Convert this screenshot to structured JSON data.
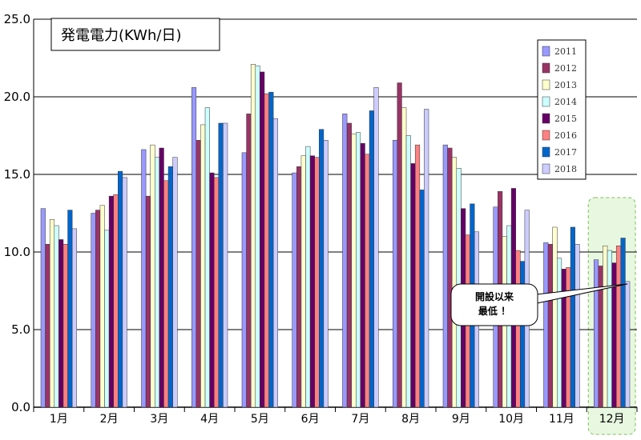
{
  "chart_data": {
    "type": "bar",
    "title": "発電電力(KWh/日)",
    "categories": [
      "1月",
      "2月",
      "3月",
      "4月",
      "5月",
      "6月",
      "7月",
      "8月",
      "9月",
      "10月",
      "11月",
      "12月"
    ],
    "ylim": [
      0,
      25
    ],
    "yticks": [
      "0.0",
      "5.0",
      "10.0",
      "15.0",
      "20.0",
      "25.0"
    ],
    "grid": true,
    "legend_position": "top-right",
    "series": [
      {
        "name": "2011",
        "color": "#9999ff",
        "values": [
          12.8,
          12.5,
          16.6,
          20.6,
          16.4,
          15.1,
          18.9,
          17.2,
          16.9,
          12.9,
          10.6,
          9.5
        ]
      },
      {
        "name": "2012",
        "color": "#993366",
        "values": [
          10.5,
          12.7,
          13.6,
          17.2,
          18.9,
          15.5,
          18.3,
          20.9,
          16.7,
          13.9,
          10.5,
          9.1
        ]
      },
      {
        "name": "2013",
        "color": "#ffffcc",
        "values": [
          12.1,
          13.0,
          16.9,
          18.2,
          22.1,
          16.2,
          17.6,
          19.3,
          16.1,
          11.0,
          11.6,
          10.4
        ]
      },
      {
        "name": "2014",
        "color": "#ccffff",
        "values": [
          11.7,
          11.4,
          16.1,
          19.3,
          22.0,
          16.8,
          17.7,
          17.5,
          15.4,
          11.7,
          9.6,
          10.1
        ]
      },
      {
        "name": "2015",
        "color": "#660066",
        "values": [
          10.8,
          13.6,
          16.7,
          15.1,
          21.6,
          16.2,
          17.0,
          15.7,
          12.8,
          14.1,
          8.9,
          9.3
        ]
      },
      {
        "name": "2016",
        "color": "#ff8080",
        "values": [
          10.5,
          13.7,
          14.6,
          14.8,
          20.2,
          16.1,
          16.3,
          16.9,
          11.1,
          10.1,
          9.0,
          10.4
        ]
      },
      {
        "name": "2017",
        "color": "#0066cc",
        "values": [
          12.7,
          15.2,
          15.5,
          18.3,
          20.3,
          17.9,
          19.1,
          14.0,
          13.1,
          9.4,
          11.6,
          10.9
        ]
      },
      {
        "name": "2018",
        "color": "#ccccff",
        "values": [
          11.5,
          14.8,
          16.1,
          18.3,
          18.6,
          17.2,
          20.6,
          19.2,
          11.3,
          12.7,
          10.5,
          8.1
        ]
      }
    ],
    "callout": {
      "lines": [
        "開設以来",
        "最低 ！"
      ],
      "target_category": "12月",
      "target_series": "2018"
    },
    "highlight_category": "12月",
    "highlight_color": "#e8f7df"
  }
}
